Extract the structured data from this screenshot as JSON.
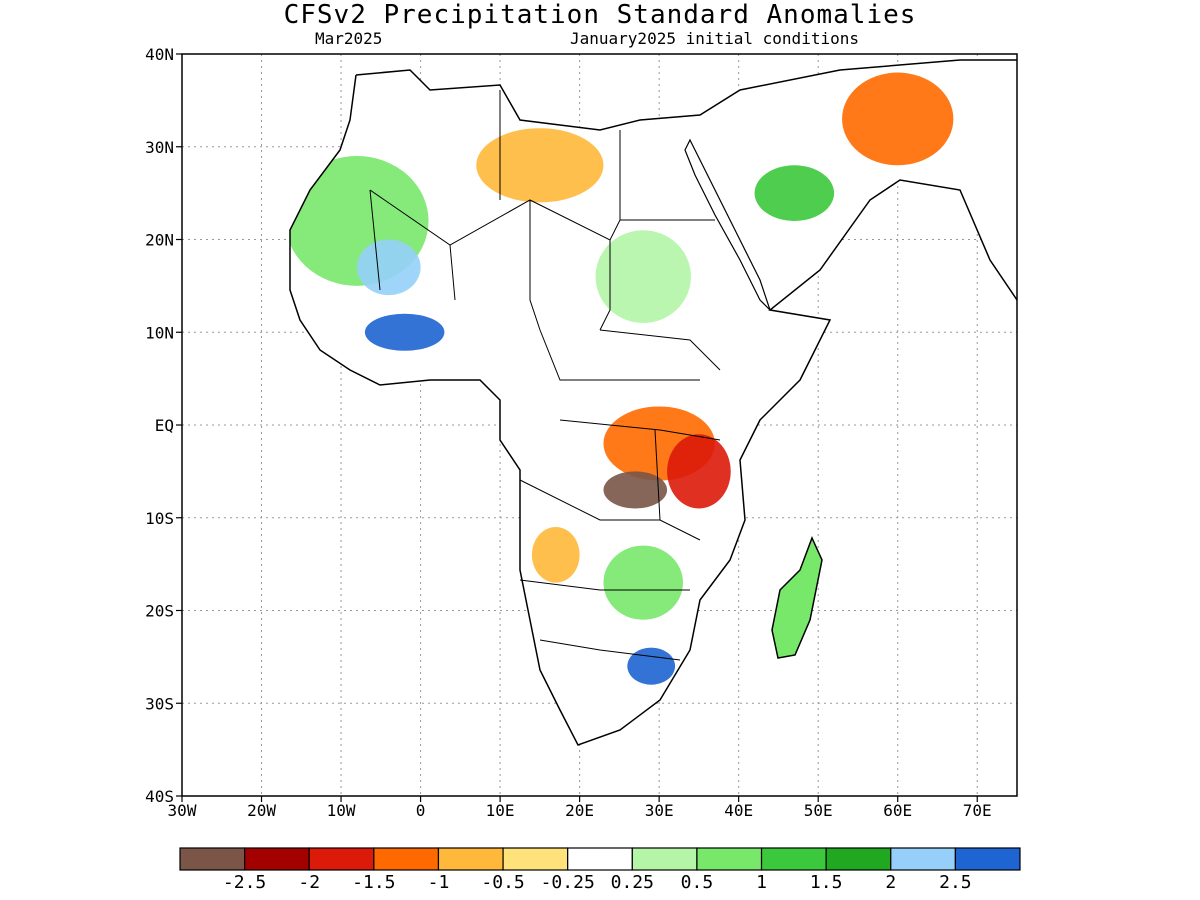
{
  "title": "CFSv2 Precipitation Standard Anomalies",
  "valid_month": "Mar2025",
  "init_text": "January2025 initial conditions",
  "axes": {
    "lon_labels": [
      "30W",
      "20W",
      "10W",
      "0",
      "10E",
      "20E",
      "30E",
      "40E",
      "50E",
      "60E",
      "70E"
    ],
    "lat_labels": [
      "40N",
      "30N",
      "20N",
      "10N",
      "EQ",
      "10S",
      "20S",
      "30S",
      "40S"
    ],
    "lon_range": [
      -30,
      75
    ],
    "lat_range": [
      -40,
      40
    ],
    "grid": "dotted"
  },
  "colorbar": {
    "colors": [
      "#7a5548",
      "#a30000",
      "#dc1a0a",
      "#ff6a00",
      "#ffb83a",
      "#ffe27a",
      "#ffffff",
      "#b4f5a8",
      "#78e86a",
      "#3cc83c",
      "#20a820",
      "#96d0fa",
      "#1e64d2"
    ],
    "labels": [
      "-2.5",
      "-2",
      "-1.5",
      "-1",
      "-0.5",
      "-0.25",
      "0.25",
      "0.5",
      "1",
      "1.5",
      "2",
      "2.5"
    ]
  },
  "regions": [
    {
      "name": "sahara-west",
      "color": "#78e86a",
      "lon": -8,
      "lat": 22,
      "rx": 9,
      "ry": 7
    },
    {
      "name": "west-africa-blue",
      "color": "#1e64d2",
      "lon": -2,
      "lat": 10,
      "rx": 5,
      "ry": 2
    },
    {
      "name": "mali-blue",
      "color": "#96d0fa",
      "lon": -4,
      "lat": 17,
      "rx": 4,
      "ry": 3
    },
    {
      "name": "libya",
      "color": "#ffb83a",
      "lon": 15,
      "lat": 28,
      "rx": 8,
      "ry": 4
    },
    {
      "name": "egypt-sudan",
      "color": "#b4f5a8",
      "lon": 28,
      "lat": 16,
      "rx": 6,
      "ry": 5
    },
    {
      "name": "arabia-green",
      "color": "#3cc83c",
      "lon": 47,
      "lat": 25,
      "rx": 5,
      "ry": 3
    },
    {
      "name": "iran",
      "color": "#ff6a00",
      "lon": 60,
      "lat": 33,
      "rx": 7,
      "ry": 5
    },
    {
      "name": "central-africa",
      "color": "#ff6a00",
      "lon": 30,
      "lat": -2,
      "rx": 7,
      "ry": 4
    },
    {
      "name": "congo-brown",
      "color": "#7a5548",
      "lon": 27,
      "lat": -7,
      "rx": 4,
      "ry": 2
    },
    {
      "name": "east-africa-red",
      "color": "#dc1a0a",
      "lon": 35,
      "lat": -5,
      "rx": 4,
      "ry": 4
    },
    {
      "name": "zambia-green",
      "color": "#78e86a",
      "lon": 28,
      "lat": -17,
      "rx": 5,
      "ry": 4
    },
    {
      "name": "south-africa-blue",
      "color": "#1e64d2",
      "lon": 29,
      "lat": -26,
      "rx": 3,
      "ry": 2
    },
    {
      "name": "angola-orange",
      "color": "#ffb83a",
      "lon": 17,
      "lat": -14,
      "rx": 3,
      "ry": 3
    },
    {
      "name": "madagascar-green",
      "color": "#3cc83c",
      "lon": 47,
      "lat": -20,
      "rx": 2,
      "ry": 4
    }
  ]
}
